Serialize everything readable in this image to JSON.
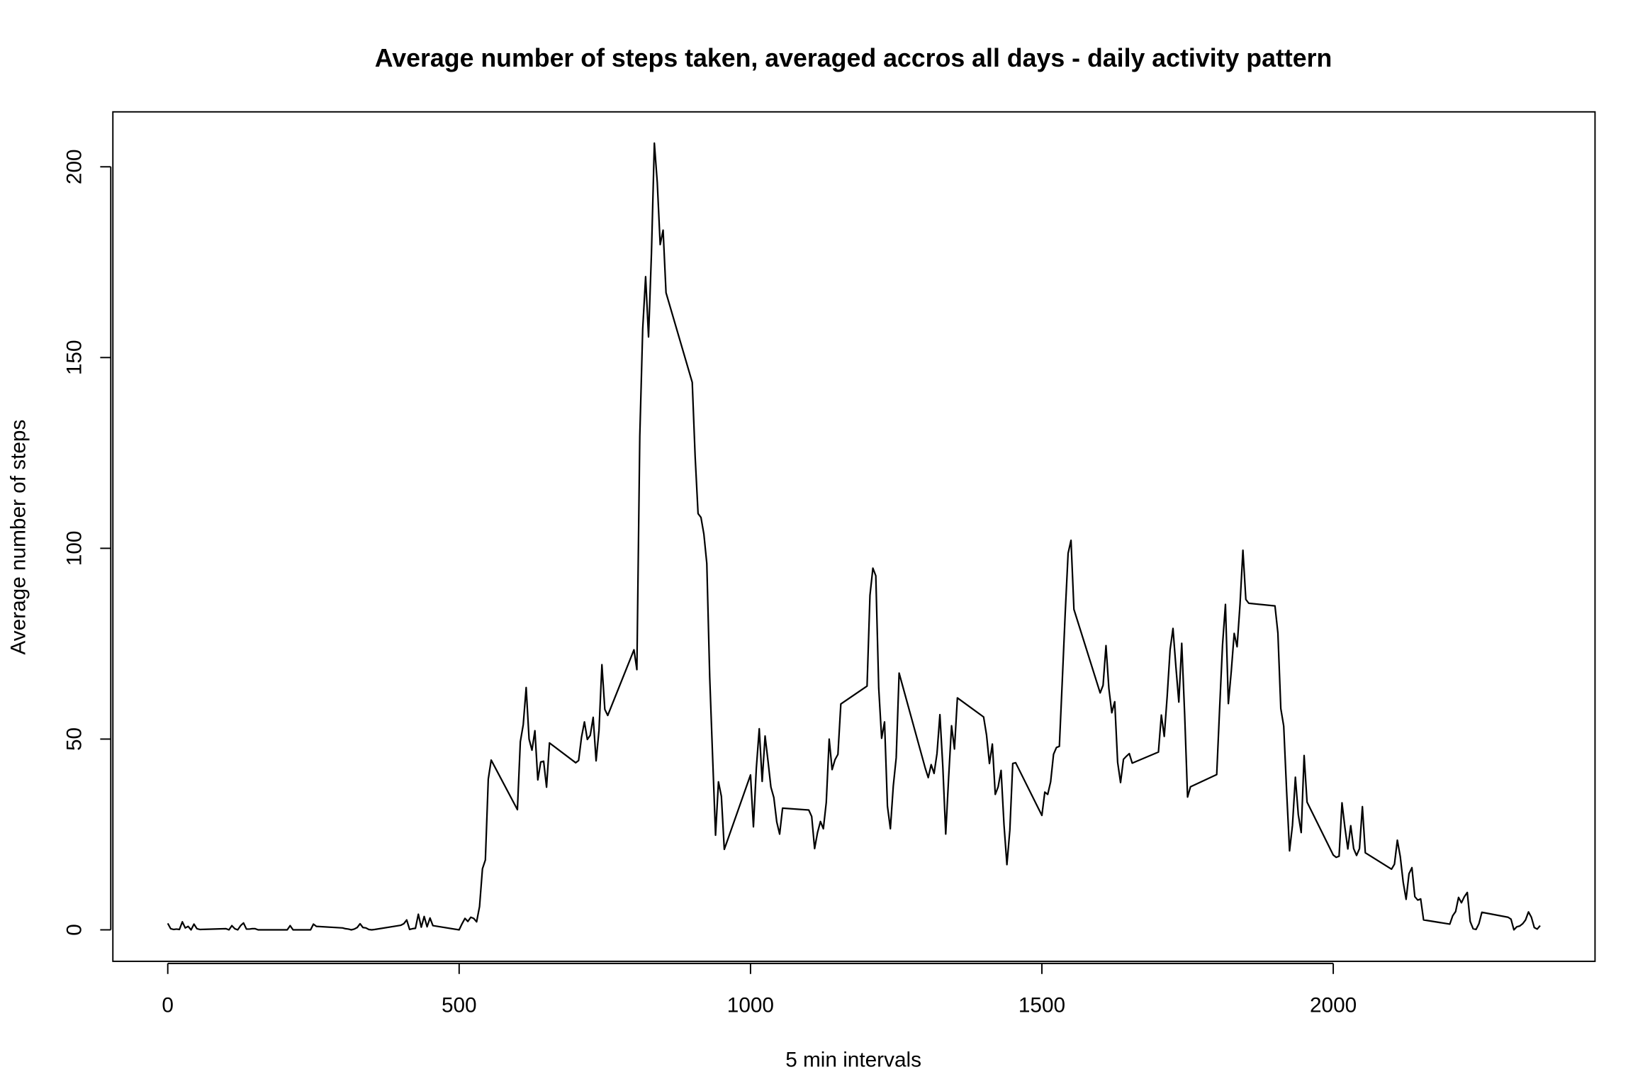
{
  "chart_data": {
    "type": "line",
    "title": "Average number of steps taken, averaged accros all days - daily activity pattern",
    "x_label": "5 min intervals",
    "y_label": "Average number of steps",
    "color": "#000000",
    "grid": false,
    "xlim": [
      -94.2,
      2449.2
    ],
    "ylim": [
      -8.25,
      214.4
    ],
    "xticks": [
      0,
      500,
      1000,
      1500,
      2000
    ],
    "yticks": [
      0,
      50,
      100,
      150,
      200
    ],
    "x": [
      0,
      5,
      10,
      15,
      20,
      25,
      30,
      35,
      40,
      45,
      50,
      55,
      100,
      105,
      110,
      115,
      120,
      125,
      130,
      135,
      140,
      145,
      150,
      155,
      200,
      205,
      210,
      215,
      220,
      225,
      230,
      235,
      240,
      245,
      250,
      255,
      300,
      305,
      310,
      315,
      320,
      325,
      330,
      335,
      340,
      345,
      350,
      355,
      400,
      405,
      410,
      415,
      420,
      425,
      430,
      435,
      440,
      445,
      450,
      455,
      500,
      505,
      510,
      515,
      520,
      525,
      530,
      535,
      540,
      545,
      550,
      555,
      600,
      605,
      610,
      615,
      620,
      625,
      630,
      635,
      640,
      645,
      650,
      655,
      700,
      705,
      710,
      715,
      720,
      725,
      730,
      735,
      740,
      745,
      750,
      755,
      800,
      805,
      810,
      815,
      820,
      825,
      830,
      835,
      840,
      845,
      850,
      855,
      900,
      905,
      910,
      915,
      920,
      925,
      930,
      935,
      940,
      945,
      950,
      955,
      1000,
      1005,
      1010,
      1015,
      1020,
      1025,
      1030,
      1035,
      1040,
      1045,
      1050,
      1055,
      1100,
      1105,
      1110,
      1115,
      1120,
      1125,
      1130,
      1135,
      1140,
      1145,
      1150,
      1155,
      1200,
      1205,
      1210,
      1215,
      1220,
      1225,
      1230,
      1235,
      1240,
      1245,
      1250,
      1255,
      1300,
      1305,
      1310,
      1315,
      1320,
      1325,
      1330,
      1335,
      1340,
      1345,
      1350,
      1355,
      1400,
      1405,
      1410,
      1415,
      1420,
      1425,
      1430,
      1435,
      1440,
      1445,
      1450,
      1455,
      1500,
      1505,
      1510,
      1515,
      1520,
      1525,
      1530,
      1535,
      1540,
      1545,
      1550,
      1555,
      1600,
      1605,
      1610,
      1615,
      1620,
      1625,
      1630,
      1635,
      1640,
      1645,
      1650,
      1655,
      1700,
      1705,
      1710,
      1715,
      1720,
      1725,
      1730,
      1735,
      1740,
      1745,
      1750,
      1755,
      1800,
      1805,
      1810,
      1815,
      1820,
      1825,
      1830,
      1835,
      1840,
      1845,
      1850,
      1855,
      1900,
      1905,
      1910,
      1915,
      1920,
      1925,
      1930,
      1935,
      1940,
      1945,
      1950,
      1955,
      2000,
      2005,
      2010,
      2015,
      2020,
      2025,
      2030,
      2035,
      2040,
      2045,
      2050,
      2055,
      2100,
      2105,
      2110,
      2115,
      2120,
      2125,
      2130,
      2135,
      2140,
      2145,
      2150,
      2155,
      2200,
      2205,
      2210,
      2215,
      2220,
      2225,
      2230,
      2235,
      2240,
      2245,
      2250,
      2255,
      2300,
      2305,
      2310,
      2315,
      2320,
      2325,
      2330,
      2335,
      2340,
      2345,
      2350,
      2355
    ],
    "values": [
      1.7,
      0.3,
      0.1,
      0.2,
      0.1,
      2.1,
      0.5,
      0.9,
      0,
      1.5,
      0.3,
      0.1,
      0.3,
      0,
      1.1,
      0.3,
      0,
      1.1,
      1.8,
      0.2,
      0.2,
      0.3,
      0.3,
      0,
      0,
      0,
      1.1,
      0,
      0,
      0,
      0,
      0,
      0,
      0,
      1.5,
      0.9,
      0.5,
      0.3,
      0.2,
      0,
      0.2,
      0.6,
      1.6,
      0.6,
      0.5,
      0.1,
      0,
      0.1,
      1.2,
      1.6,
      2.6,
      0.1,
      0.3,
      0.4,
      4.1,
      0.7,
      3.5,
      0.8,
      3.1,
      1.1,
      0,
      1.6,
      3.0,
      2.2,
      3.3,
      3.0,
      2.1,
      6.1,
      16.0,
      18.3,
      39.5,
      44.5,
      31.5,
      49.3,
      53.8,
      63.5,
      50.0,
      47.1,
      52.2,
      39.3,
      44.0,
      44.2,
      37.4,
      49.0,
      43.8,
      44.4,
      50.5,
      54.5,
      49.9,
      51.0,
      55.7,
      44.3,
      52.3,
      69.5,
      57.8,
      56.2,
      73.4,
      68.2,
      129.4,
      157.5,
      171.2,
      155.4,
      177.3,
      206.2,
      195.9,
      179.6,
      183.4,
      167.0,
      143.5,
      124.0,
      109.1,
      108.1,
      103.7,
      96.0,
      66.2,
      45.2,
      24.8,
      38.8,
      35.0,
      21.1,
      40.6,
      27.0,
      42.4,
      52.7,
      38.9,
      50.8,
      44.3,
      37.4,
      34.7,
      28.3,
      25.1,
      31.9,
      31.4,
      29.7,
      21.3,
      25.5,
      28.4,
      26.5,
      33.4,
      50.0,
      42.0,
      44.6,
      46.0,
      59.2,
      63.9,
      87.7,
      94.8,
      92.8,
      63.4,
      50.2,
      54.5,
      32.4,
      26.5,
      37.7,
      45.1,
      67.3,
      42.3,
      39.9,
      43.3,
      41.0,
      46.2,
      56.4,
      42.8,
      25.1,
      40.0,
      53.5,
      47.4,
      60.8,
      55.8,
      51.1,
      43.6,
      48.7,
      35.5,
      37.5,
      41.8,
      27.5,
      17.1,
      26.1,
      43.6,
      43.8,
      30.0,
      36.1,
      35.5,
      38.8,
      46.0,
      47.8,
      48.1,
      65.3,
      82.9,
      98.7,
      102.1,
      84.0,
      62.1,
      64.1,
      74.5,
      63.2,
      56.9,
      59.8,
      43.9,
      38.6,
      44.7,
      45.5,
      46.2,
      43.7,
      46.6,
      56.3,
      50.7,
      61.2,
      73.4,
      79.0,
      68.9,
      59.7,
      75.1,
      56.5,
      34.8,
      37.5,
      40.7,
      58.0,
      74.7,
      85.3,
      59.3,
      67.8,
      77.7,
      74.2,
      85.3,
      99.5,
      86.6,
      85.6,
      84.9,
      77.8,
      58.0,
      53.4,
      36.3,
      20.7,
      27.4,
      40.0,
      30.2,
      25.5,
      45.7,
      33.5,
      19.6,
      19.0,
      19.3,
      33.3,
      26.8,
      21.2,
      27.3,
      21.3,
      19.5,
      21.3,
      32.3,
      20.2,
      15.9,
      17.2,
      23.5,
      19.2,
      12.5,
      8.0,
      14.7,
      16.3,
      8.7,
      7.8,
      8.1,
      2.6,
      1.5,
      3.7,
      4.8,
      8.5,
      7.1,
      8.7,
      9.8,
      2.2,
      0.3,
      0.1,
      1.6,
      4.6,
      3.3,
      2.8,
      0,
      0.8,
      1.0,
      1.6,
      2.6,
      4.7,
      3.3,
      0.6,
      0.2,
      1.1
    ]
  }
}
